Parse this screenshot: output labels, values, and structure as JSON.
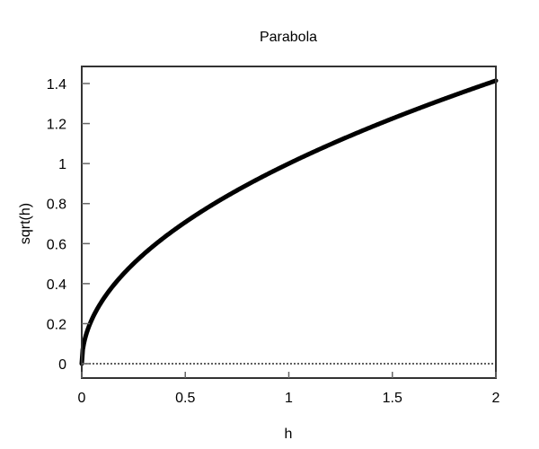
{
  "chart_data": {
    "type": "line",
    "title": "Parabola",
    "xlabel": "h",
    "ylabel": "sqrt(h)",
    "xlim": [
      0,
      2
    ],
    "ylim": [
      -0.07,
      1.49
    ],
    "xticks": [
      0,
      0.5,
      1,
      1.5,
      2
    ],
    "xtick_labels": [
      "0",
      "0.5",
      "1",
      "1.5",
      "2"
    ],
    "yticks": [
      0,
      0.2,
      0.4,
      0.6,
      0.8,
      1,
      1.2,
      1.4
    ],
    "ytick_labels": [
      "0",
      "0.2",
      "0.4",
      "0.6",
      "0.8",
      "1",
      "1.2",
      "1.4"
    ],
    "grid": false,
    "reference_line": {
      "y": 0,
      "style": "dotted"
    },
    "series": [
      {
        "name": "sqrt(h)",
        "function": "sqrt(x)",
        "x": [
          0,
          0.01,
          0.05,
          0.1,
          0.25,
          0.5,
          0.75,
          1,
          1.25,
          1.5,
          1.75,
          2
        ],
        "values": [
          0,
          0.1,
          0.224,
          0.316,
          0.5,
          0.707,
          0.866,
          1,
          1.118,
          1.225,
          1.323,
          1.414
        ],
        "color": "#000000"
      }
    ]
  }
}
